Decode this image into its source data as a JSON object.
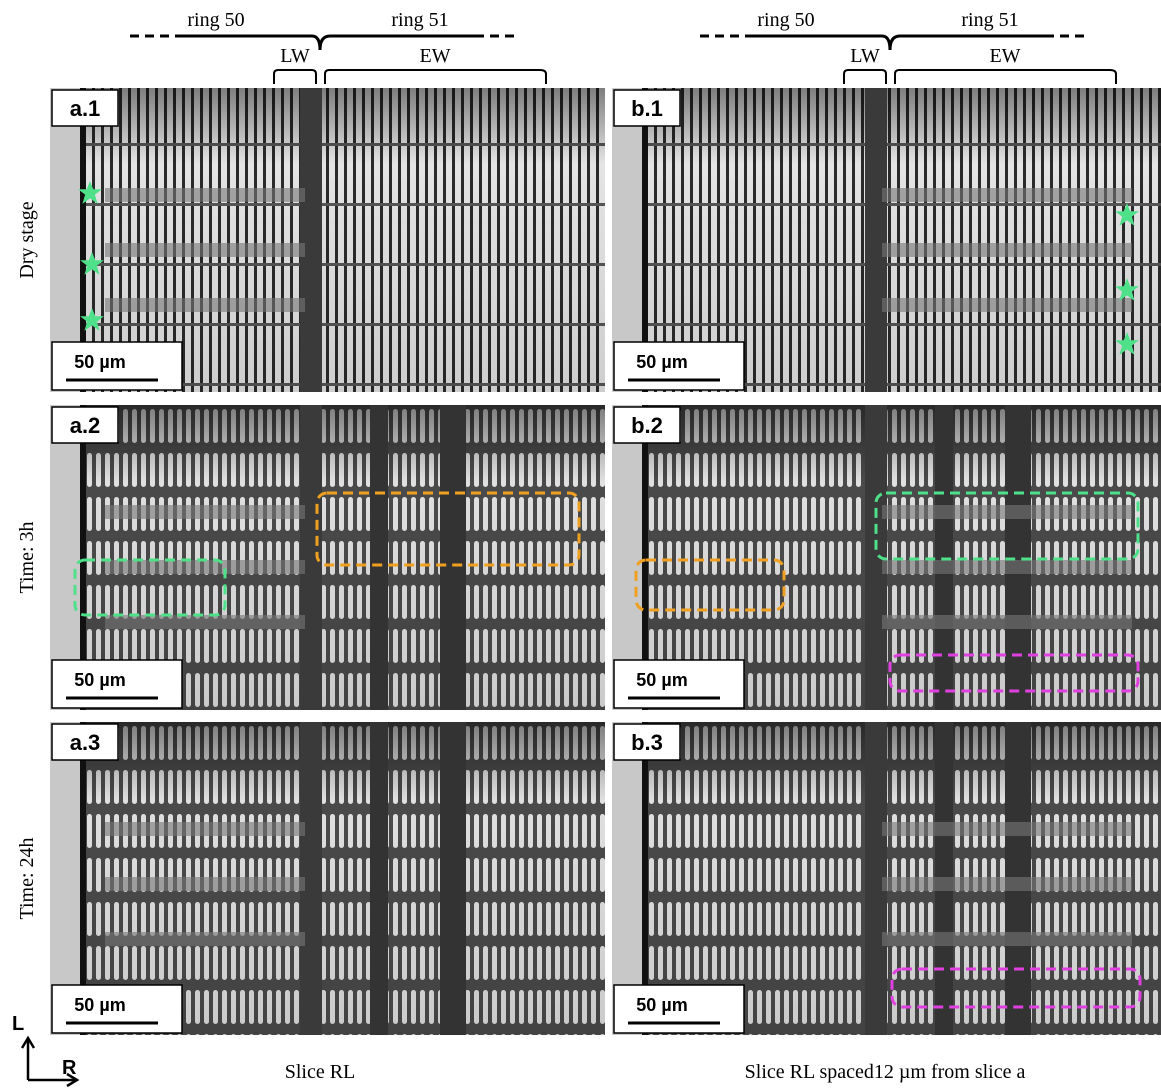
{
  "header": {
    "left": {
      "ring_a": "ring 50",
      "ring_b": "ring 51",
      "lw": "LW",
      "ew": "EW"
    },
    "right": {
      "ring_a": "ring 50",
      "ring_b": "ring 51",
      "lw": "LW",
      "ew": "EW"
    }
  },
  "rows": [
    {
      "label": "Dry stage",
      "panels": [
        {
          "id": "a.1",
          "scale": "50 µm"
        },
        {
          "id": "b.1",
          "scale": "50 µm"
        }
      ]
    },
    {
      "label": "Time: 3h",
      "panels": [
        {
          "id": "a.2",
          "scale": "50 µm"
        },
        {
          "id": "b.2",
          "scale": "50 µm"
        }
      ]
    },
    {
      "label": "Time: 24h",
      "panels": [
        {
          "id": "a.3",
          "scale": "50 µm"
        },
        {
          "id": "b.3",
          "scale": "50 µm"
        }
      ]
    }
  ],
  "axes": {
    "vertical": "L",
    "horizontal": "R"
  },
  "columns": [
    "Slice RL",
    "Slice RL spaced12 µm from slice a"
  ]
}
